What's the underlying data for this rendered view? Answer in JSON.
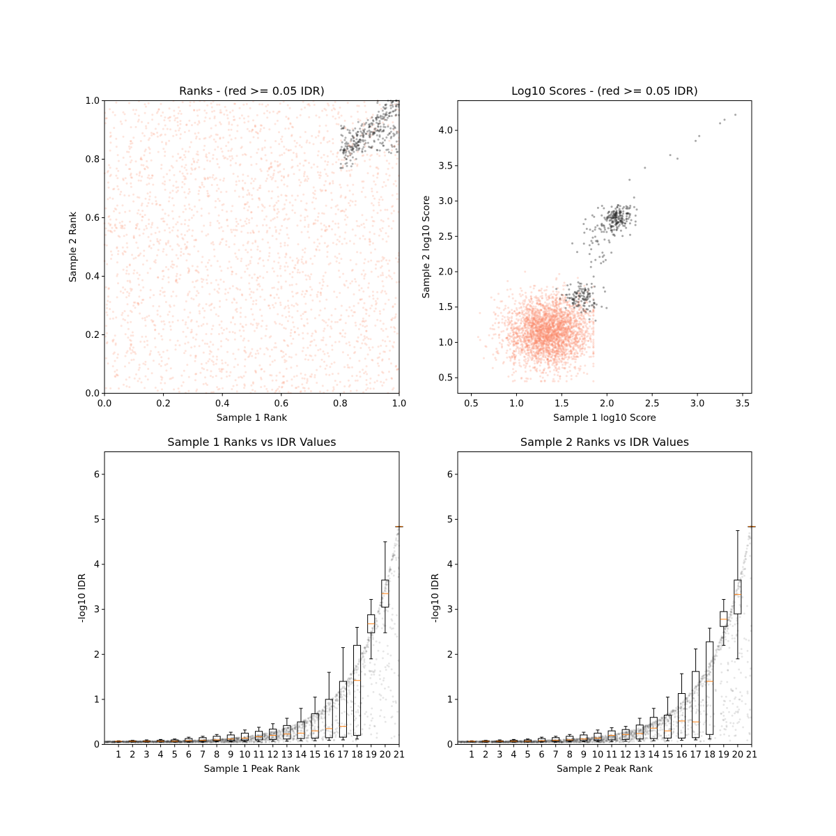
{
  "colors": {
    "below_threshold": "#fa8866",
    "passing": "#222222",
    "box": "#000000",
    "median": "#ff7f0e"
  },
  "chart_data": [
    {
      "type": "scatter",
      "title": "Ranks - (red >= 0.05 IDR)",
      "xlabel": "Sample 1 Rank",
      "ylabel": "Sample 2 Rank",
      "xlim": [
        0.0,
        1.0
      ],
      "ylim": [
        0.0,
        1.0
      ],
      "xticks": [
        "0.0",
        "0.2",
        "0.4",
        "0.6",
        "0.8",
        "1.0"
      ],
      "yticks": [
        "0.0",
        "0.2",
        "0.4",
        "0.6",
        "0.8",
        "1.0"
      ],
      "grid": false,
      "series": [
        {
          "color": "#fa8866",
          "region": "uniform spread",
          "x_range": [
            0.0,
            1.0
          ],
          "y_range": [
            0.0,
            1.0
          ],
          "approx_points": 2600
        },
        {
          "color": "#222222",
          "region": "upper-right cluster",
          "x_range": [
            0.78,
            1.0
          ],
          "y_range": [
            0.76,
            1.0
          ],
          "approx_points": 320
        }
      ]
    },
    {
      "type": "scatter",
      "title": "Log10 Scores - (red >= 0.05 IDR)",
      "xlabel": "Sample 1 log10 Score",
      "ylabel": "Sample 2 log10 Score",
      "xlim": [
        0.35,
        3.6
      ],
      "ylim": [
        0.28,
        4.42
      ],
      "xticks": [
        "0.5",
        "1.0",
        "1.5",
        "2.0",
        "2.5",
        "3.0",
        "3.5"
      ],
      "yticks": [
        "0.5",
        "1.0",
        "1.5",
        "2.0",
        "2.5",
        "3.0",
        "3.5",
        "4.0"
      ],
      "grid": false,
      "series": [
        {
          "color": "#fa8866",
          "center": [
            1.35,
            1.15
          ],
          "spread": [
            0.22,
            0.25
          ],
          "approx_points": 3000
        },
        {
          "color": "#222222",
          "center": [
            1.72,
            1.62
          ],
          "spread": [
            0.1,
            0.1
          ],
          "approx_points": 130
        },
        {
          "color": "#222222",
          "center": [
            2.12,
            2.78
          ],
          "spread": [
            0.09,
            0.08
          ],
          "approx_points": 180
        },
        {
          "color": "#222222",
          "center": [
            1.9,
            2.5
          ],
          "spread": [
            0.12,
            0.2
          ],
          "approx_points": 60
        }
      ]
    },
    {
      "type": "box",
      "title": "Sample 1 Ranks vs IDR Values",
      "xlabel": "Sample 1 Peak Rank",
      "ylabel": "-log10 IDR",
      "xlim": [
        0,
        21
      ],
      "ylim": [
        0,
        6.5
      ],
      "xticks": [
        "1",
        "2",
        "3",
        "4",
        "5",
        "6",
        "7",
        "8",
        "9",
        "10",
        "11",
        "12",
        "13",
        "14",
        "15",
        "16",
        "17",
        "18",
        "19",
        "20",
        "21"
      ],
      "yticks": [
        "0",
        "1",
        "2",
        "3",
        "4",
        "5",
        "6"
      ],
      "boxes": [
        {
          "pos": 1,
          "wlo": 0.05,
          "q1": 0.06,
          "med": 0.07,
          "q3": 0.07,
          "whi": 0.08
        },
        {
          "pos": 2,
          "wlo": 0.05,
          "q1": 0.06,
          "med": 0.07,
          "q3": 0.08,
          "whi": 0.09
        },
        {
          "pos": 3,
          "wlo": 0.05,
          "q1": 0.06,
          "med": 0.07,
          "q3": 0.08,
          "whi": 0.1
        },
        {
          "pos": 4,
          "wlo": 0.05,
          "q1": 0.06,
          "med": 0.07,
          "q3": 0.09,
          "whi": 0.11
        },
        {
          "pos": 5,
          "wlo": 0.05,
          "q1": 0.06,
          "med": 0.07,
          "q3": 0.1,
          "whi": 0.12
        },
        {
          "pos": 6,
          "wlo": 0.05,
          "q1": 0.07,
          "med": 0.08,
          "q3": 0.13,
          "whi": 0.16
        },
        {
          "pos": 7,
          "wlo": 0.05,
          "q1": 0.07,
          "med": 0.09,
          "q3": 0.15,
          "whi": 0.18
        },
        {
          "pos": 8,
          "wlo": 0.06,
          "q1": 0.08,
          "med": 0.1,
          "q3": 0.18,
          "whi": 0.22
        },
        {
          "pos": 9,
          "wlo": 0.06,
          "q1": 0.08,
          "med": 0.12,
          "q3": 0.21,
          "whi": 0.27
        },
        {
          "pos": 10,
          "wlo": 0.06,
          "q1": 0.09,
          "med": 0.14,
          "q3": 0.25,
          "whi": 0.32
        },
        {
          "pos": 11,
          "wlo": 0.06,
          "q1": 0.1,
          "med": 0.17,
          "q3": 0.29,
          "whi": 0.38
        },
        {
          "pos": 12,
          "wlo": 0.07,
          "q1": 0.11,
          "med": 0.2,
          "q3": 0.34,
          "whi": 0.46
        },
        {
          "pos": 13,
          "wlo": 0.07,
          "q1": 0.12,
          "med": 0.23,
          "q3": 0.42,
          "whi": 0.58
        },
        {
          "pos": 14,
          "wlo": 0.08,
          "q1": 0.13,
          "med": 0.25,
          "q3": 0.5,
          "whi": 0.8
        },
        {
          "pos": 15,
          "wlo": 0.08,
          "q1": 0.14,
          "med": 0.3,
          "q3": 0.68,
          "whi": 1.05
        },
        {
          "pos": 16,
          "wlo": 0.09,
          "q1": 0.15,
          "med": 0.35,
          "q3": 1.0,
          "whi": 1.6
        },
        {
          "pos": 17,
          "wlo": 0.1,
          "q1": 0.16,
          "med": 0.4,
          "q3": 1.4,
          "whi": 2.15
        },
        {
          "pos": 18,
          "wlo": 0.12,
          "q1": 0.2,
          "med": 1.42,
          "q3": 2.2,
          "whi": 2.6
        },
        {
          "pos": 19,
          "wlo": 1.9,
          "q1": 2.48,
          "med": 2.68,
          "q3": 2.88,
          "whi": 3.22
        },
        {
          "pos": 20,
          "wlo": 2.48,
          "q1": 3.05,
          "med": 3.35,
          "q3": 3.65,
          "whi": 4.5
        },
        {
          "pos": 21,
          "wlo": 4.84,
          "q1": 4.84,
          "med": 4.84,
          "q3": 4.84,
          "whi": 4.84
        }
      ]
    },
    {
      "type": "box",
      "title": "Sample 2 Ranks vs IDR Values",
      "xlabel": "Sample 2 Peak Rank",
      "ylabel": "-log10 IDR",
      "xlim": [
        0,
        21
      ],
      "ylim": [
        0,
        6.5
      ],
      "xticks": [
        "1",
        "2",
        "3",
        "4",
        "5",
        "6",
        "7",
        "8",
        "9",
        "10",
        "11",
        "12",
        "13",
        "14",
        "15",
        "16",
        "17",
        "18",
        "19",
        "20",
        "21"
      ],
      "yticks": [
        "0",
        "1",
        "2",
        "3",
        "4",
        "5",
        "6"
      ],
      "boxes": [
        {
          "pos": 1,
          "wlo": 0.05,
          "q1": 0.06,
          "med": 0.07,
          "q3": 0.07,
          "whi": 0.08
        },
        {
          "pos": 2,
          "wlo": 0.05,
          "q1": 0.06,
          "med": 0.07,
          "q3": 0.08,
          "whi": 0.09
        },
        {
          "pos": 3,
          "wlo": 0.05,
          "q1": 0.06,
          "med": 0.07,
          "q3": 0.08,
          "whi": 0.1
        },
        {
          "pos": 4,
          "wlo": 0.05,
          "q1": 0.06,
          "med": 0.07,
          "q3": 0.09,
          "whi": 0.11
        },
        {
          "pos": 5,
          "wlo": 0.05,
          "q1": 0.06,
          "med": 0.07,
          "q3": 0.1,
          "whi": 0.12
        },
        {
          "pos": 6,
          "wlo": 0.05,
          "q1": 0.07,
          "med": 0.08,
          "q3": 0.13,
          "whi": 0.16
        },
        {
          "pos": 7,
          "wlo": 0.05,
          "q1": 0.07,
          "med": 0.09,
          "q3": 0.15,
          "whi": 0.18
        },
        {
          "pos": 8,
          "wlo": 0.06,
          "q1": 0.08,
          "med": 0.1,
          "q3": 0.18,
          "whi": 0.22
        },
        {
          "pos": 9,
          "wlo": 0.06,
          "q1": 0.08,
          "med": 0.12,
          "q3": 0.21,
          "whi": 0.27
        },
        {
          "pos": 10,
          "wlo": 0.06,
          "q1": 0.09,
          "med": 0.14,
          "q3": 0.25,
          "whi": 0.32
        },
        {
          "pos": 11,
          "wlo": 0.06,
          "q1": 0.1,
          "med": 0.2,
          "q3": 0.3,
          "whi": 0.37
        },
        {
          "pos": 12,
          "wlo": 0.07,
          "q1": 0.11,
          "med": 0.22,
          "q3": 0.33,
          "whi": 0.4
        },
        {
          "pos": 13,
          "wlo": 0.07,
          "q1": 0.12,
          "med": 0.24,
          "q3": 0.43,
          "whi": 0.58
        },
        {
          "pos": 14,
          "wlo": 0.08,
          "q1": 0.13,
          "med": 0.36,
          "q3": 0.6,
          "whi": 0.8
        },
        {
          "pos": 15,
          "wlo": 0.08,
          "q1": 0.14,
          "med": 0.3,
          "q3": 0.65,
          "whi": 1.05
        },
        {
          "pos": 16,
          "wlo": 0.09,
          "q1": 0.14,
          "med": 0.52,
          "q3": 1.13,
          "whi": 1.57
        },
        {
          "pos": 17,
          "wlo": 0.1,
          "q1": 0.15,
          "med": 0.5,
          "q3": 1.62,
          "whi": 2.12
        },
        {
          "pos": 18,
          "wlo": 0.12,
          "q1": 0.22,
          "med": 1.4,
          "q3": 2.28,
          "whi": 2.58
        },
        {
          "pos": 19,
          "wlo": 2.2,
          "q1": 2.62,
          "med": 2.78,
          "q3": 2.95,
          "whi": 3.22
        },
        {
          "pos": 20,
          "wlo": 1.9,
          "q1": 2.9,
          "med": 3.33,
          "q3": 3.65,
          "whi": 4.75
        },
        {
          "pos": 21,
          "wlo": 4.84,
          "q1": 4.84,
          "med": 4.84,
          "q3": 4.84,
          "whi": 4.84
        }
      ]
    }
  ]
}
